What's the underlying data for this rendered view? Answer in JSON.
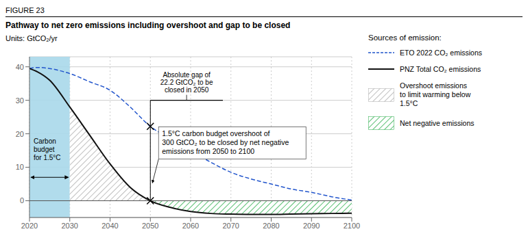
{
  "chart_data": {
    "type": "line",
    "figure_label": "FIGURE 23",
    "title": "Pathway to net zero emissions including overshoot and gap to be closed",
    "units": "Units: GtCO₂/yr",
    "xlim": [
      2020,
      2100
    ],
    "ylim": [
      -5,
      43
    ],
    "xticks": [
      2020,
      2030,
      2040,
      2050,
      2060,
      2070,
      2080,
      2090,
      2100
    ],
    "yticks": [
      0,
      10,
      20,
      30,
      40
    ],
    "grid": true,
    "zero_line": 0,
    "legend_title": "Sources of emission:",
    "series": [
      {
        "name": "ETO 2022 CO₂ emissions",
        "color": "#2255cc",
        "line_style": "dashed",
        "x": [
          2020,
          2022,
          2025,
          2027,
          2030,
          2035,
          2040,
          2045,
          2050,
          2055,
          2060,
          2065,
          2070,
          2075,
          2080,
          2085,
          2090,
          2095,
          2100
        ],
        "values": [
          39.5,
          39.8,
          39.5,
          39.0,
          38.0,
          35.5,
          33.0,
          28.0,
          22.2,
          18.5,
          15.0,
          11.5,
          8.5,
          6.5,
          5.0,
          3.5,
          2.5,
          1.2,
          0.2
        ]
      },
      {
        "name": "PNZ Total CO₂ emissions",
        "color": "#111111",
        "line_style": "solid",
        "x": [
          2020,
          2022,
          2025,
          2030,
          2035,
          2040,
          2045,
          2050,
          2055,
          2060,
          2065,
          2070,
          2075,
          2080,
          2085,
          2090,
          2095,
          2100
        ],
        "values": [
          39.5,
          38.5,
          36.0,
          28.0,
          19.5,
          11.0,
          4.0,
          0.0,
          -2.0,
          -3.2,
          -3.8,
          -4.0,
          -4.1,
          -4.1,
          -4.0,
          -3.9,
          -3.8,
          -3.7
        ]
      }
    ],
    "areas": [
      {
        "name": "Overshoot emissions\nto limit warming below\n1.5°C",
        "color": "#aaaaaa",
        "series": "PNZ Total CO₂ emissions",
        "x_range": [
          2030,
          2050
        ]
      },
      {
        "name": "Net negative emissions",
        "color": "#22aa44",
        "series": "PNZ Total CO₂ emissions",
        "x_range": [
          2050,
          2100
        ]
      }
    ],
    "carbon_budget": {
      "label": "Carbon\nbudget\nfor 1.5°C",
      "color": "#a8d8ea",
      "x_range": [
        2020,
        2030
      ]
    },
    "gap": {
      "label": "Absolute gap of\n22.2 GtCO₂ to be\nclosed in 2050",
      "y": 30.0,
      "x_range": [
        2050,
        2068
      ]
    },
    "marker": "x",
    "markers": [
      {
        "x": 2050,
        "y": 22.2
      },
      {
        "x": 2050,
        "y": 0.0
      }
    ],
    "overshoot_annotation": "1.5°C carbon budget overshoot of\n300 GtCO₂ to be closed by net negative\nemissions from 2050 to 2100"
  }
}
